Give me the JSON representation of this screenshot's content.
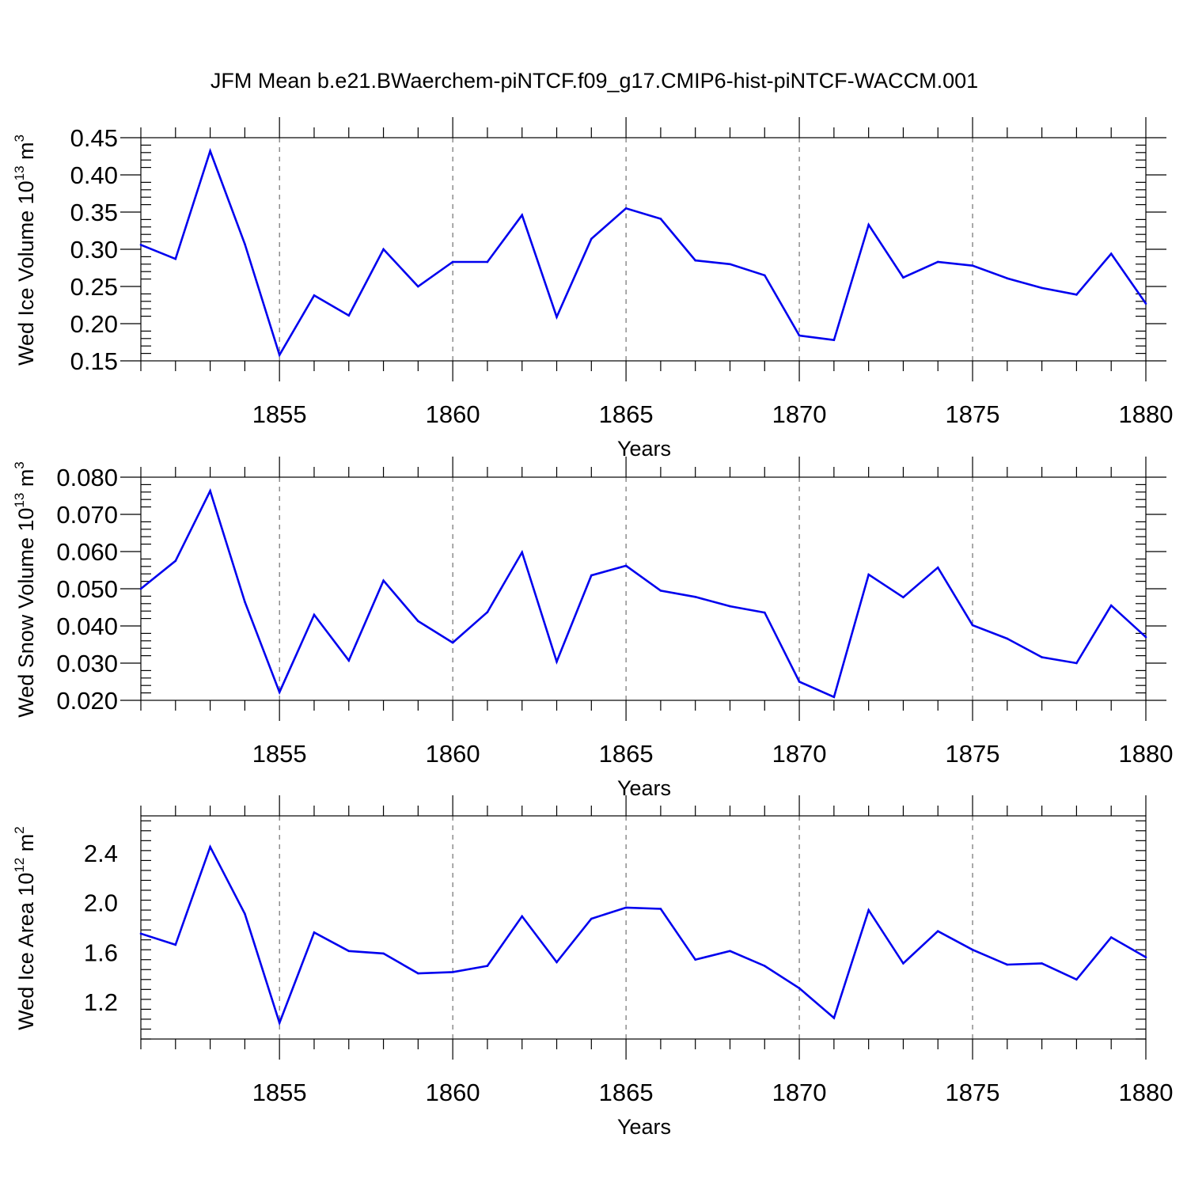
{
  "title": "JFM Mean b.e21.BWaerchem-piNTCF.f09_g17.CMIP6-hist-piNTCF-WACCM.001",
  "line_color": "#0000ee",
  "chart_data": [
    {
      "type": "line",
      "xlabel": "Years",
      "ylabel": "Wed Ice Volume 10",
      "ylabel_sup": "13",
      "ylabel_unit": " m",
      "ylabel_unit_sup": "3",
      "xlim": [
        1851,
        1880
      ],
      "ylim": [
        0.15,
        0.45
      ],
      "grid": "dashed vertical at major x ticks",
      "x_ticks": [
        1855,
        1860,
        1865,
        1870,
        1875,
        1880
      ],
      "x_tick_labels": [
        "1855",
        "1860",
        "1865",
        "1870",
        "1875",
        "1880"
      ],
      "y_ticks": [
        0.15,
        0.2,
        0.25,
        0.3,
        0.35,
        0.4,
        0.45
      ],
      "y_tick_labels": [
        "0.15",
        "0.20",
        "0.25",
        "0.30",
        "0.35",
        "0.40",
        "0.45"
      ],
      "x": [
        1851,
        1852,
        1853,
        1854,
        1855,
        1856,
        1857,
        1858,
        1859,
        1860,
        1861,
        1862,
        1863,
        1864,
        1865,
        1866,
        1867,
        1868,
        1869,
        1870,
        1871,
        1872,
        1873,
        1874,
        1875,
        1876,
        1877,
        1878,
        1879,
        1880
      ],
      "values": [
        0.306,
        0.287,
        0.432,
        0.307,
        0.158,
        0.238,
        0.211,
        0.3,
        0.25,
        0.283,
        0.283,
        0.346,
        0.209,
        0.314,
        0.355,
        0.341,
        0.285,
        0.28,
        0.265,
        0.184,
        0.178,
        0.333,
        0.262,
        0.283,
        0.278,
        0.261,
        0.248,
        0.239,
        0.294,
        0.227
      ]
    },
    {
      "type": "line",
      "xlabel": "Years",
      "ylabel": "Wed Snow Volume 10",
      "ylabel_sup": "13",
      "ylabel_unit": " m",
      "ylabel_unit_sup": "3",
      "xlim": [
        1851,
        1880
      ],
      "ylim": [
        0.02,
        0.08
      ],
      "grid": "dashed vertical at major x ticks",
      "x_ticks": [
        1855,
        1860,
        1865,
        1870,
        1875,
        1880
      ],
      "x_tick_labels": [
        "1855",
        "1860",
        "1865",
        "1870",
        "1875",
        "1880"
      ],
      "y_ticks": [
        0.02,
        0.03,
        0.04,
        0.05,
        0.06,
        0.07,
        0.08
      ],
      "y_tick_labels": [
        "0.020",
        "0.030",
        "0.040",
        "0.050",
        "0.060",
        "0.070",
        "0.080"
      ],
      "x": [
        1851,
        1852,
        1853,
        1854,
        1855,
        1856,
        1857,
        1858,
        1859,
        1860,
        1861,
        1862,
        1863,
        1864,
        1865,
        1866,
        1867,
        1868,
        1869,
        1870,
        1871,
        1872,
        1873,
        1874,
        1875,
        1876,
        1877,
        1878,
        1879,
        1880
      ],
      "values": [
        0.05,
        0.0575,
        0.0763,
        0.0465,
        0.0222,
        0.043,
        0.0307,
        0.0522,
        0.0413,
        0.0355,
        0.0437,
        0.0598,
        0.0304,
        0.0536,
        0.0562,
        0.0495,
        0.0478,
        0.0453,
        0.0436,
        0.025,
        0.0209,
        0.0538,
        0.0477,
        0.0557,
        0.0402,
        0.0366,
        0.0316,
        0.03,
        0.0455,
        0.037
      ]
    },
    {
      "type": "line",
      "xlabel": "Years",
      "ylabel": "Wed Ice Area 10",
      "ylabel_sup": "12",
      "ylabel_unit": " m",
      "ylabel_unit_sup": "2",
      "xlim": [
        1851,
        1880
      ],
      "ylim": [
        0.9,
        2.7
      ],
      "grid": "dashed vertical at major x ticks",
      "x_ticks": [
        1855,
        1860,
        1865,
        1870,
        1875,
        1880
      ],
      "x_tick_labels": [
        "1855",
        "1860",
        "1865",
        "1870",
        "1875",
        "1880"
      ],
      "y_ticks": [
        1.2,
        1.6,
        2.0,
        2.4
      ],
      "y_tick_labels": [
        "1.2",
        "1.6",
        "2.0",
        "2.4"
      ],
      "x": [
        1851,
        1852,
        1853,
        1854,
        1855,
        1856,
        1857,
        1858,
        1859,
        1860,
        1861,
        1862,
        1863,
        1864,
        1865,
        1866,
        1867,
        1868,
        1869,
        1870,
        1871,
        1872,
        1873,
        1874,
        1875,
        1876,
        1877,
        1878,
        1879,
        1880
      ],
      "values": [
        1.75,
        1.66,
        2.45,
        1.91,
        1.03,
        1.76,
        1.61,
        1.59,
        1.43,
        1.44,
        1.49,
        1.89,
        1.52,
        1.87,
        1.96,
        1.95,
        1.54,
        1.61,
        1.49,
        1.31,
        1.07,
        1.94,
        1.51,
        1.77,
        1.62,
        1.5,
        1.51,
        1.38,
        1.72,
        1.56
      ]
    }
  ]
}
